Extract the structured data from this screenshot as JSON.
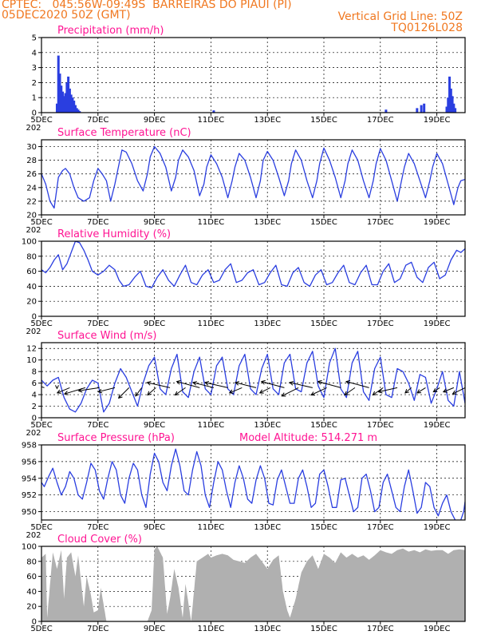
{
  "header": {
    "line1_left": "CPTEC:   045:56W-09:49S  BARREIRAS DO PIAUI (PI)",
    "line2_left": "05DEC2020 50Z (GMT)",
    "line2_right": "Vertical Grid Line: 50Z",
    "line3_right": "TQ0126L028"
  },
  "colors": {
    "series": "#2a3ee0",
    "cloud": "#a8a8a8",
    "title": "#ff1493",
    "header": "#f07820",
    "wind_arrow": "#000000"
  },
  "x_axis": {
    "start_day": 5,
    "end_day": 20,
    "ticks": [
      {
        "day": 5,
        "label": "5DEC"
      },
      {
        "day": 7,
        "label": "7DEC"
      },
      {
        "day": 9,
        "label": "9DEC"
      },
      {
        "day": 11,
        "label": "11DEC"
      },
      {
        "day": 13,
        "label": "13DEC"
      },
      {
        "day": 15,
        "label": "15DEC"
      },
      {
        "day": 17,
        "label": "17DEC"
      },
      {
        "day": 19,
        "label": "19DEC"
      }
    ],
    "year_fragment": "202"
  },
  "chart_data": [
    {
      "id": "precip",
      "type": "bar",
      "title": "Precipitation (mm/h)",
      "ylim": [
        0,
        5
      ],
      "yticks": [
        0,
        1,
        2,
        3,
        4,
        5
      ],
      "grid": true,
      "x": [
        5.55,
        5.6,
        5.65,
        5.7,
        5.75,
        5.8,
        5.85,
        5.9,
        5.95,
        6.0,
        6.05,
        6.1,
        6.15,
        6.2,
        6.25,
        6.3,
        6.35,
        11.1,
        17.2,
        18.3,
        18.45,
        18.55,
        19.35,
        19.4,
        19.45,
        19.5,
        19.55,
        19.6,
        19.65
      ],
      "values": [
        0.6,
        3.8,
        2.6,
        1.8,
        1.4,
        1.1,
        1.3,
        2.0,
        2.4,
        1.6,
        1.2,
        1.0,
        0.8,
        0.5,
        0.3,
        0.2,
        0.1,
        0.15,
        0.2,
        0.3,
        0.5,
        0.6,
        0.4,
        1.0,
        2.4,
        1.6,
        1.1,
        0.6,
        0.3
      ]
    },
    {
      "id": "temp",
      "type": "line",
      "title": "Surface Temperature (nC)",
      "ylim": [
        20,
        31
      ],
      "yticks": [
        20,
        22,
        24,
        26,
        28,
        30
      ],
      "grid": true,
      "x": [
        5.0,
        5.15,
        5.3,
        5.45,
        5.6,
        5.75,
        5.85,
        6.0,
        6.15,
        6.3,
        6.5,
        6.7,
        6.85,
        7.0,
        7.15,
        7.3,
        7.45,
        7.6,
        7.75,
        7.85,
        8.0,
        8.2,
        8.4,
        8.6,
        8.75,
        8.85,
        9.0,
        9.2,
        9.4,
        9.6,
        9.75,
        9.85,
        10.0,
        10.2,
        10.4,
        10.6,
        10.75,
        10.85,
        11.0,
        11.2,
        11.4,
        11.6,
        11.75,
        11.85,
        12.0,
        12.2,
        12.4,
        12.6,
        12.75,
        12.85,
        13.0,
        13.2,
        13.4,
        13.6,
        13.75,
        13.85,
        14.0,
        14.2,
        14.4,
        14.6,
        14.75,
        14.85,
        15.0,
        15.2,
        15.4,
        15.6,
        15.75,
        15.85,
        16.0,
        16.2,
        16.4,
        16.6,
        16.75,
        16.85,
        17.0,
        17.2,
        17.4,
        17.6,
        17.75,
        17.85,
        18.0,
        18.2,
        18.4,
        18.6,
        18.75,
        18.85,
        19.0,
        19.2,
        19.4,
        19.6,
        19.75,
        19.85,
        20.0
      ],
      "values": [
        26.0,
        24.5,
        22.0,
        21.0,
        25.5,
        26.5,
        26.8,
        26.0,
        24.0,
        22.5,
        22.0,
        22.5,
        25.0,
        26.8,
        26.0,
        25.0,
        22.0,
        24.5,
        27.5,
        29.5,
        29.2,
        27.5,
        25.0,
        23.5,
        26.0,
        28.5,
        30.0,
        29.0,
        27.0,
        23.5,
        25.5,
        28.0,
        29.5,
        28.5,
        26.5,
        22.8,
        24.5,
        27.0,
        28.8,
        27.5,
        25.5,
        22.5,
        25.0,
        27.0,
        29.0,
        28.0,
        25.5,
        22.5,
        25.0,
        28.0,
        29.3,
        28.0,
        25.5,
        22.8,
        25.0,
        27.5,
        29.5,
        28.0,
        25.0,
        22.5,
        25.0,
        27.5,
        29.8,
        28.0,
        25.5,
        22.5,
        25.0,
        27.5,
        29.5,
        28.0,
        25.0,
        22.5,
        25.0,
        27.5,
        29.7,
        28.0,
        25.0,
        22.0,
        25.0,
        27.0,
        29.0,
        27.5,
        25.0,
        22.5,
        25.0,
        27.0,
        29.0,
        27.5,
        24.5,
        21.5,
        24.0,
        25.0,
        25.2
      ]
    },
    {
      "id": "rh",
      "type": "line",
      "title": "Relative Humidity (%)",
      "ylim": [
        0,
        100
      ],
      "yticks": [
        0,
        20,
        40,
        60,
        80,
        100
      ],
      "grid": true,
      "x": [
        5.0,
        5.15,
        5.3,
        5.45,
        5.6,
        5.75,
        5.9,
        6.05,
        6.2,
        6.35,
        6.5,
        6.65,
        6.8,
        7.0,
        7.2,
        7.4,
        7.6,
        7.75,
        7.9,
        8.1,
        8.3,
        8.5,
        8.7,
        8.9,
        9.1,
        9.3,
        9.5,
        9.7,
        9.9,
        10.1,
        10.3,
        10.5,
        10.7,
        10.9,
        11.1,
        11.3,
        11.5,
        11.7,
        11.9,
        12.1,
        12.3,
        12.5,
        12.7,
        12.9,
        13.1,
        13.3,
        13.5,
        13.7,
        13.9,
        14.1,
        14.3,
        14.5,
        14.7,
        14.9,
        15.1,
        15.3,
        15.5,
        15.7,
        15.9,
        16.1,
        16.3,
        16.5,
        16.7,
        16.9,
        17.1,
        17.3,
        17.5,
        17.7,
        17.9,
        18.1,
        18.3,
        18.5,
        18.7,
        18.9,
        19.1,
        19.3,
        19.5,
        19.7,
        19.85,
        20.0
      ],
      "values": [
        62,
        58,
        65,
        75,
        82,
        62,
        70,
        85,
        100,
        98,
        88,
        75,
        60,
        55,
        60,
        68,
        62,
        48,
        40,
        42,
        52,
        60,
        40,
        38,
        52,
        62,
        48,
        40,
        55,
        68,
        45,
        42,
        55,
        62,
        45,
        48,
        62,
        70,
        45,
        48,
        58,
        62,
        42,
        45,
        58,
        68,
        42,
        40,
        58,
        65,
        45,
        40,
        55,
        62,
        42,
        45,
        58,
        68,
        45,
        42,
        58,
        68,
        42,
        42,
        60,
        70,
        45,
        50,
        68,
        72,
        52,
        45,
        65,
        72,
        50,
        55,
        75,
        88,
        85,
        90
      ]
    },
    {
      "id": "wind",
      "type": "line",
      "title": "Surface Wind (m/s)",
      "ylim": [
        0,
        13
      ],
      "yticks": [
        0,
        2,
        4,
        6,
        8,
        10,
        12
      ],
      "grid": true,
      "x": [
        5.0,
        5.2,
        5.4,
        5.6,
        5.8,
        6.0,
        6.2,
        6.4,
        6.6,
        6.8,
        7.0,
        7.2,
        7.4,
        7.6,
        7.8,
        8.0,
        8.2,
        8.4,
        8.6,
        8.8,
        9.0,
        9.2,
        9.4,
        9.6,
        9.8,
        10.0,
        10.2,
        10.4,
        10.6,
        10.8,
        11.0,
        11.2,
        11.4,
        11.6,
        11.8,
        12.0,
        12.2,
        12.4,
        12.6,
        12.8,
        13.0,
        13.2,
        13.4,
        13.6,
        13.8,
        14.0,
        14.2,
        14.4,
        14.6,
        14.8,
        15.0,
        15.2,
        15.4,
        15.6,
        15.8,
        16.0,
        16.2,
        16.4,
        16.6,
        16.8,
        17.0,
        17.2,
        17.4,
        17.6,
        17.8,
        18.0,
        18.2,
        18.4,
        18.6,
        18.8,
        19.0,
        19.2,
        19.4,
        19.6,
        19.8,
        20.0
      ],
      "values": [
        6.5,
        5.5,
        6.5,
        7.0,
        3.5,
        1.5,
        1.0,
        2.5,
        5.0,
        6.5,
        6.0,
        1.0,
        2.5,
        6.0,
        8.5,
        7.0,
        4.5,
        2.0,
        6.0,
        9.0,
        10.5,
        5.0,
        4.0,
        8.5,
        11.0,
        4.5,
        3.5,
        8.0,
        10.5,
        5.0,
        4.0,
        9.0,
        10.5,
        5.0,
        4.0,
        9.0,
        11.0,
        5.0,
        4.0,
        8.5,
        11.0,
        5.0,
        4.0,
        9.5,
        11.0,
        5.0,
        4.5,
        9.5,
        11.5,
        5.5,
        3.5,
        9.5,
        12.0,
        5.0,
        3.5,
        9.5,
        11.5,
        4.5,
        3.0,
        8.5,
        10.5,
        4.0,
        3.5,
        8.5,
        8.0,
        6.0,
        3.0,
        7.5,
        7.0,
        2.5,
        5.0,
        8.0,
        3.0,
        2.0,
        8.0,
        2.5
      ],
      "arrows": {
        "y": 5.2,
        "x": [
          5.1,
          5.55,
          6.0,
          6.55,
          7.05,
          7.6,
          8.1,
          8.55,
          9.05,
          9.55,
          10.1,
          10.6,
          11.1,
          11.6,
          12.1,
          12.6,
          13.1,
          13.6,
          14.1,
          14.6,
          15.1,
          15.6,
          16.1,
          16.6,
          17.1,
          17.6,
          18.1,
          18.6,
          19.1,
          19.6,
          20.0
        ],
        "u": [
          -1.5,
          0.0,
          -1.2,
          -2.0,
          -2.0,
          -1.6,
          -1.0,
          -0.6,
          -0.8,
          -2.2,
          -1.0,
          -2.2,
          -2.0,
          -2.2,
          -1.2,
          -2.0,
          -1.0,
          -2.2,
          -1.6,
          -2.2,
          -1.5,
          -2.2,
          -1.0,
          -2.2,
          -1.0,
          -1.8,
          -0.6,
          -0.8,
          -0.6,
          -1.0,
          -1.2
        ],
        "v": [
          0.5,
          0.0,
          -0.5,
          -0.6,
          -0.3,
          -0.4,
          -1.0,
          -0.8,
          -0.7,
          0.5,
          -0.7,
          0.6,
          0.5,
          0.5,
          -0.5,
          0.5,
          -0.5,
          0.6,
          -0.8,
          0.5,
          -0.7,
          0.6,
          -0.7,
          0.6,
          -0.7,
          -0.4,
          -0.5,
          -0.5,
          -0.4,
          -0.4,
          -0.6
        ]
      }
    },
    {
      "id": "pres",
      "type": "line",
      "title": "Surface Pressure (hPa)",
      "subtitle": "Model Altitude: 514.271 m",
      "ylim": [
        949,
        958
      ],
      "yticks": [
        950,
        952,
        954,
        956,
        958
      ],
      "grid": true,
      "x": [
        5.0,
        5.1,
        5.25,
        5.4,
        5.55,
        5.7,
        5.85,
        6.0,
        6.15,
        6.3,
        6.45,
        6.6,
        6.75,
        6.9,
        7.05,
        7.2,
        7.35,
        7.5,
        7.65,
        7.8,
        7.95,
        8.1,
        8.25,
        8.4,
        8.55,
        8.7,
        8.85,
        9.0,
        9.15,
        9.3,
        9.45,
        9.6,
        9.75,
        9.9,
        10.05,
        10.2,
        10.35,
        10.5,
        10.65,
        10.8,
        10.95,
        11.1,
        11.25,
        11.4,
        11.55,
        11.7,
        11.85,
        12.0,
        12.15,
        12.3,
        12.45,
        12.6,
        12.75,
        12.9,
        13.05,
        13.2,
        13.35,
        13.5,
        13.65,
        13.8,
        13.95,
        14.1,
        14.25,
        14.4,
        14.55,
        14.7,
        14.85,
        15.0,
        15.15,
        15.3,
        15.45,
        15.6,
        15.75,
        15.9,
        16.05,
        16.2,
        16.35,
        16.5,
        16.65,
        16.8,
        16.95,
        17.1,
        17.25,
        17.4,
        17.55,
        17.7,
        17.85,
        18.0,
        18.15,
        18.3,
        18.45,
        18.6,
        18.75,
        18.9,
        19.05,
        19.2,
        19.35,
        19.5,
        19.65,
        19.8,
        19.95,
        20.0
      ],
      "values": [
        953.5,
        953.0,
        954.2,
        955.2,
        953.5,
        952.0,
        953.0,
        954.8,
        954.0,
        952.0,
        951.5,
        953.5,
        955.8,
        955.0,
        952.5,
        951.5,
        954.0,
        956.0,
        955.0,
        952.0,
        951.0,
        954.0,
        955.8,
        955.0,
        952.0,
        950.5,
        954.5,
        957.0,
        956.0,
        953.5,
        952.5,
        955.5,
        957.5,
        955.5,
        952.5,
        952.0,
        955.0,
        957.2,
        955.5,
        952.0,
        950.5,
        953.5,
        956.0,
        955.0,
        952.5,
        950.5,
        953.5,
        955.5,
        954.0,
        951.5,
        951.0,
        953.8,
        955.5,
        954.0,
        951.0,
        950.8,
        953.8,
        955.0,
        953.0,
        951.0,
        951.0,
        954.0,
        955.0,
        953.0,
        950.5,
        951.0,
        954.5,
        955.0,
        953.0,
        950.5,
        950.5,
        953.8,
        954.0,
        952.0,
        950.0,
        950.5,
        954.0,
        954.5,
        952.5,
        950.0,
        950.5,
        953.5,
        954.5,
        952.5,
        950.5,
        950.0,
        953.0,
        955.0,
        952.5,
        949.8,
        950.5,
        953.5,
        953.0,
        950.5,
        949.5,
        951.0,
        952.0,
        950.0,
        949.0,
        948.5,
        950.0,
        951.2
      ]
    },
    {
      "id": "cloud",
      "type": "area",
      "title": "Cloud Cover (%)",
      "ylim": [
        0,
        100
      ],
      "yticks": [
        0,
        20,
        40,
        60,
        80,
        100
      ],
      "grid": true,
      "x": [
        5.0,
        5.15,
        5.2,
        5.4,
        5.55,
        5.7,
        5.8,
        5.9,
        6.05,
        6.2,
        6.3,
        6.5,
        6.6,
        6.75,
        6.85,
        7.0,
        7.1,
        7.3,
        7.45,
        7.6,
        7.8,
        8.0,
        8.2,
        8.4,
        8.6,
        8.75,
        8.9,
        9.0,
        9.1,
        9.3,
        9.45,
        9.55,
        9.7,
        9.85,
        10.0,
        10.1,
        10.2,
        10.3,
        10.5,
        10.7,
        10.9,
        11.0,
        11.2,
        11.4,
        11.6,
        11.8,
        12.0,
        12.2,
        12.4,
        12.6,
        12.8,
        13.0,
        13.2,
        13.4,
        13.55,
        13.7,
        13.8,
        14.0,
        14.2,
        14.4,
        14.6,
        14.8,
        15.0,
        15.2,
        15.4,
        15.6,
        15.8,
        16.0,
        16.2,
        16.4,
        16.6,
        16.8,
        17.0,
        17.2,
        17.4,
        17.6,
        17.8,
        18.0,
        18.2,
        18.4,
        18.6,
        18.8,
        19.0,
        19.2,
        19.4,
        19.6,
        19.8,
        20.0
      ],
      "values": [
        85,
        90,
        5,
        92,
        70,
        95,
        30,
        85,
        92,
        60,
        88,
        20,
        60,
        35,
        12,
        15,
        45,
        0,
        0,
        0,
        0,
        0,
        0,
        0,
        0,
        0,
        15,
        96,
        100,
        85,
        10,
        30,
        70,
        45,
        5,
        50,
        25,
        0,
        80,
        85,
        90,
        85,
        88,
        90,
        88,
        82,
        80,
        78,
        85,
        90,
        80,
        70,
        82,
        88,
        40,
        15,
        5,
        30,
        65,
        80,
        88,
        70,
        90,
        85,
        78,
        92,
        85,
        90,
        85,
        88,
        82,
        88,
        95,
        92,
        90,
        95,
        97,
        93,
        95,
        92,
        96,
        94,
        95,
        95,
        90,
        95,
        96,
        95
      ]
    }
  ]
}
